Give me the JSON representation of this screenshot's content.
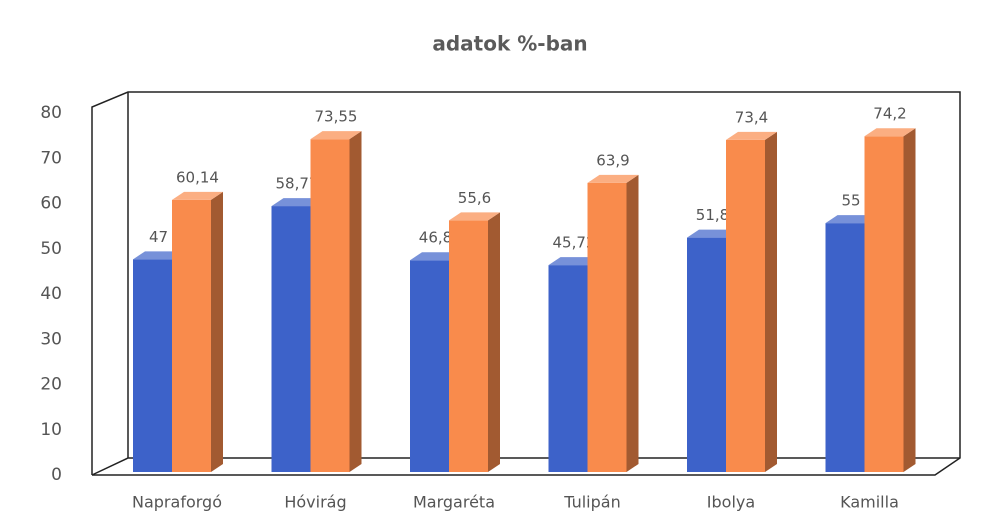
{
  "chart_data": {
    "type": "bar3d",
    "title": "adatok %-ban",
    "categories": [
      "Napraforgó",
      "Hóvirág",
      "Margaréta",
      "Tulipán",
      "Ibolya",
      "Kamilla"
    ],
    "series": [
      {
        "color": "#3d62c9",
        "values": [
          47,
          58.77,
          46.8,
          45.72,
          51.8,
          55
        ],
        "value_labels": [
          "47",
          "58,77",
          "46,8",
          "45,72",
          "51,8",
          "55"
        ]
      },
      {
        "color": "#f98b4c",
        "values": [
          60.14,
          73.55,
          55.6,
          63.9,
          73.4,
          74.2
        ],
        "value_labels": [
          "60,14",
          "73,55",
          "55,6",
          "63,9",
          "73,4",
          "74,2"
        ]
      }
    ],
    "ylim": [
      0,
      80
    ],
    "yticks": [
      0,
      10,
      20,
      30,
      40,
      50,
      60,
      70,
      80
    ]
  }
}
